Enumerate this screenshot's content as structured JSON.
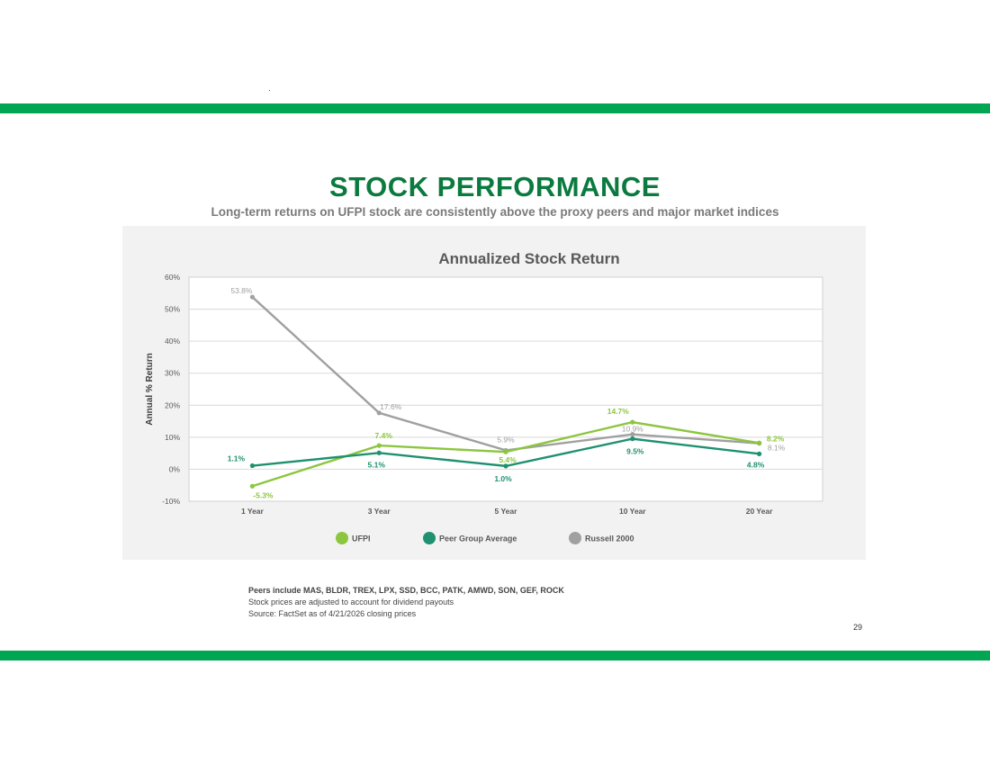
{
  "page": {
    "title": "STOCK PERFORMANCE",
    "subtitle": "Long-term returns on UFPI stock are consistently above the proxy peers and major market indices",
    "notes": [
      "Peers include MAS, BLDR, TREX, LPX, SSD, BCC, PATK, AMWD, SON, GEF, ROCK",
      "Stock prices are adjusted to account for dividend payouts",
      "Source: FactSet as of 4/21/2026 closing prices"
    ],
    "page_number": "29",
    "colors": {
      "brand_green": "#00a651",
      "title_green": "#0a7a3e"
    }
  },
  "chart_data": {
    "type": "line",
    "title": "Annualized Stock Return",
    "xlabel": "",
    "ylabel": "Annual % Return",
    "categories": [
      "1 Year",
      "3 Year",
      "5 Year",
      "10 Year",
      "20 Year"
    ],
    "ylim": [
      -10,
      60
    ],
    "yticks": [
      -10,
      0,
      10,
      20,
      30,
      40,
      50,
      60
    ],
    "ytick_labels": [
      "-10%",
      "0%",
      "10%",
      "20%",
      "30%",
      "40%",
      "50%",
      "60%"
    ],
    "grid": true,
    "legend": "bottom",
    "series": [
      {
        "name": "UFPI",
        "color": "#8cc63f",
        "values": [
          -5.3,
          7.4,
          5.4,
          14.7,
          8.2
        ],
        "labels": [
          "-5.3%",
          "7.4%",
          "5.4%",
          "14.7%",
          "8.2%"
        ]
      },
      {
        "name": "Peer Group Average",
        "color": "#1f9170",
        "values": [
          1.1,
          5.1,
          1.0,
          9.5,
          4.8
        ],
        "labels": [
          "1.1%",
          "5.1%",
          "1.0%",
          "9.5%",
          "4.8%"
        ]
      },
      {
        "name": "Russell 2000",
        "color": "#a0a0a0",
        "values": [
          53.8,
          17.6,
          5.9,
          10.9,
          8.1
        ],
        "labels": [
          "53.8%",
          "17.6%",
          "5.9%",
          "10.9%",
          "8.1%"
        ]
      }
    ]
  }
}
